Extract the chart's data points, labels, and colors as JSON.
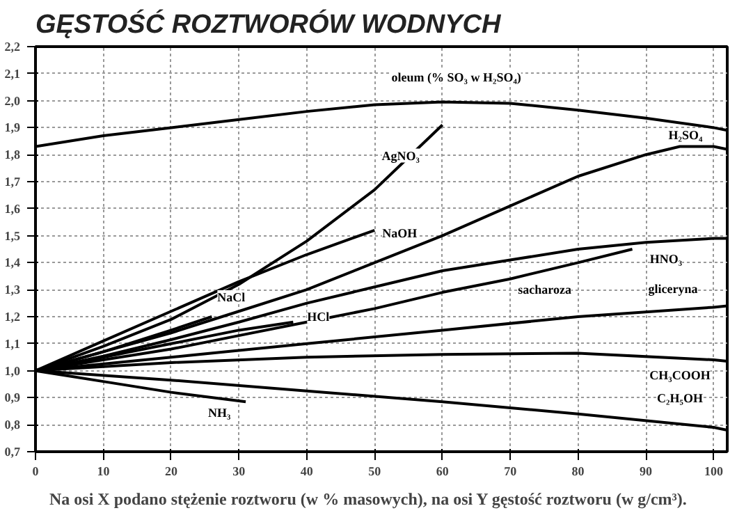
{
  "chart_data": {
    "type": "line",
    "title": "GĘSTOŚĆ ROZTWORÓW WODNYCH",
    "xlim": [
      0,
      102
    ],
    "ylim": [
      0.7,
      2.2
    ],
    "xticks": [
      0,
      10,
      20,
      30,
      40,
      50,
      60,
      70,
      80,
      90,
      100
    ],
    "yticks": [
      {
        "value": 0.7,
        "label": "0,7"
      },
      {
        "value": 0.8,
        "label": "0,8"
      },
      {
        "value": 0.9,
        "label": "0,9"
      },
      {
        "value": 1.0,
        "label": "1,0"
      },
      {
        "value": 1.1,
        "label": "1,1"
      },
      {
        "value": 1.2,
        "label": "1,2"
      },
      {
        "value": 1.3,
        "label": "1,3"
      },
      {
        "value": 1.4,
        "label": "1,4"
      },
      {
        "value": 1.5,
        "label": "1,5"
      },
      {
        "value": 1.6,
        "label": "1,6"
      },
      {
        "value": 1.7,
        "label": "1,7"
      },
      {
        "value": 1.8,
        "label": "1,8"
      },
      {
        "value": 1.9,
        "label": "1,9"
      },
      {
        "value": 2.0,
        "label": "2,0"
      },
      {
        "value": 2.1,
        "label": "2,1"
      },
      {
        "value": 2.2,
        "label": "2,2"
      }
    ],
    "grid": true,
    "marker": "none",
    "line_style": "solid",
    "series": [
      {
        "name": "oleum (% SO₃ w H₂SO₄)",
        "color": "#000000",
        "x": [
          0,
          10,
          20,
          30,
          40,
          50,
          60,
          70,
          80,
          90,
          100,
          102
        ],
        "values": [
          1.83,
          1.87,
          1.9,
          1.93,
          1.96,
          1.985,
          1.995,
          1.99,
          1.965,
          1.935,
          1.9,
          1.89
        ]
      },
      {
        "name": "AgNO₃",
        "color": "#000000",
        "x": [
          0,
          10,
          20,
          30,
          40,
          50,
          60
        ],
        "values": [
          1.0,
          1.09,
          1.19,
          1.32,
          1.48,
          1.67,
          1.91
        ]
      },
      {
        "name": "NaOH",
        "color": "#000000",
        "x": [
          0,
          10,
          20,
          30,
          40,
          50
        ],
        "values": [
          1.0,
          1.11,
          1.22,
          1.33,
          1.43,
          1.52
        ]
      },
      {
        "name": "NaCl",
        "color": "#000000",
        "x": [
          0,
          10,
          20,
          26
        ],
        "values": [
          1.0,
          1.07,
          1.15,
          1.2
        ]
      },
      {
        "name": "HCl",
        "color": "#000000",
        "x": [
          0,
          10,
          20,
          30,
          38
        ],
        "values": [
          1.0,
          1.05,
          1.1,
          1.15,
          1.18
        ]
      },
      {
        "name": "H₂SO₄",
        "color": "#000000",
        "x": [
          0,
          10,
          20,
          30,
          40,
          50,
          60,
          70,
          80,
          90,
          95,
          100,
          102
        ],
        "values": [
          1.0,
          1.07,
          1.14,
          1.22,
          1.3,
          1.4,
          1.5,
          1.61,
          1.72,
          1.8,
          1.83,
          1.83,
          1.82
        ]
      },
      {
        "name": "HNO₃",
        "color": "#000000",
        "x": [
          0,
          10,
          20,
          30,
          40,
          50,
          60,
          70,
          80,
          90,
          100,
          102
        ],
        "values": [
          1.0,
          1.054,
          1.115,
          1.18,
          1.25,
          1.31,
          1.37,
          1.41,
          1.45,
          1.475,
          1.49,
          1.49
        ]
      },
      {
        "name": "sacharoza",
        "color": "#000000",
        "x": [
          0,
          10,
          20,
          30,
          40,
          50,
          60,
          70,
          80,
          88
        ],
        "values": [
          1.0,
          1.04,
          1.08,
          1.13,
          1.18,
          1.23,
          1.29,
          1.34,
          1.4,
          1.45
        ]
      },
      {
        "name": "gliceryna",
        "color": "#000000",
        "x": [
          0,
          20,
          40,
          60,
          80,
          100,
          102
        ],
        "values": [
          1.0,
          1.05,
          1.1,
          1.15,
          1.2,
          1.235,
          1.24
        ]
      },
      {
        "name": "CH₃COOH",
        "color": "#000000",
        "x": [
          0,
          20,
          40,
          60,
          80,
          100,
          102
        ],
        "values": [
          1.0,
          1.03,
          1.05,
          1.06,
          1.065,
          1.04,
          1.035
        ]
      },
      {
        "name": "C₂H₅OH",
        "color": "#000000",
        "x": [
          0,
          20,
          40,
          60,
          80,
          100,
          102
        ],
        "values": [
          1.0,
          0.965,
          0.925,
          0.885,
          0.84,
          0.79,
          0.78
        ]
      },
      {
        "name": "NH₃",
        "color": "#000000",
        "x": [
          0,
          10,
          20,
          31
        ],
        "values": [
          1.0,
          0.96,
          0.92,
          0.885
        ]
      }
    ],
    "annotations": [
      "Na osi X podano stężenie roztworu (w % masowych), na osi Y gęstość roztworu (w g/cm³)."
    ]
  }
}
